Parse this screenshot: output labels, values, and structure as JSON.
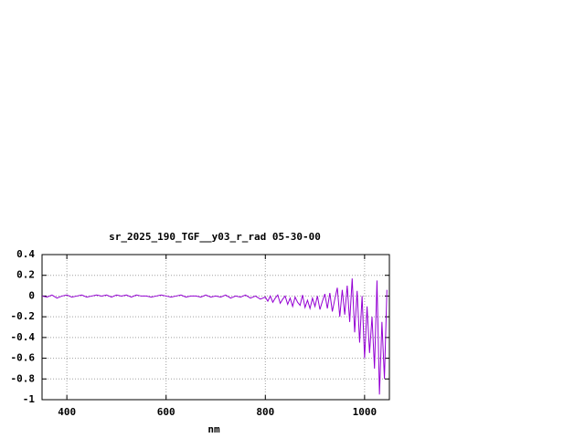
{
  "chart_data": {
    "type": "line",
    "title": "sr_2025_190_TGF__y03_r_rad 05-30-00",
    "x_label": "nm",
    "x": [
      350,
      360,
      370,
      380,
      390,
      400,
      410,
      420,
      430,
      440,
      450,
      460,
      470,
      480,
      490,
      500,
      510,
      520,
      530,
      540,
      550,
      560,
      570,
      580,
      590,
      600,
      610,
      620,
      630,
      640,
      650,
      660,
      670,
      680,
      690,
      700,
      710,
      720,
      730,
      740,
      750,
      760,
      770,
      780,
      790,
      800,
      805,
      810,
      815,
      820,
      825,
      830,
      835,
      840,
      845,
      850,
      855,
      860,
      865,
      870,
      875,
      880,
      885,
      890,
      895,
      900,
      905,
      910,
      915,
      920,
      925,
      930,
      935,
      940,
      945,
      950,
      955,
      960,
      965,
      970,
      975,
      980,
      985,
      990,
      995,
      1000,
      1005,
      1010,
      1015,
      1020,
      1025,
      1030,
      1035,
      1040,
      1045
    ],
    "series": [
      {
        "color": "#9400d3",
        "values": [
          0.0,
          -0.01,
          0.01,
          -0.02,
          0.0,
          0.01,
          -0.01,
          0.0,
          0.01,
          -0.01,
          0.0,
          0.01,
          0.0,
          0.01,
          -0.01,
          0.01,
          0.0,
          0.01,
          -0.01,
          0.01,
          0.0,
          0.0,
          -0.01,
          0.0,
          0.01,
          0.0,
          -0.01,
          0.0,
          0.01,
          -0.01,
          0.0,
          0.0,
          -0.01,
          0.01,
          -0.01,
          0.0,
          -0.01,
          0.01,
          -0.02,
          0.0,
          -0.01,
          0.01,
          -0.02,
          0.0,
          -0.03,
          -0.01,
          -0.05,
          0.0,
          -0.06,
          -0.02,
          0.01,
          -0.07,
          -0.03,
          0.0,
          -0.08,
          -0.02,
          -0.1,
          -0.01,
          -0.06,
          -0.09,
          0.01,
          -0.11,
          -0.04,
          -0.12,
          -0.02,
          -0.1,
          0.0,
          -0.13,
          -0.05,
          0.02,
          -0.12,
          0.03,
          -0.15,
          -0.03,
          0.08,
          -0.2,
          0.06,
          -0.18,
          0.1,
          -0.25,
          0.17,
          -0.35,
          0.05,
          -0.45,
          0.0,
          -0.6,
          -0.1,
          -0.55,
          -0.2,
          -0.7,
          0.15,
          -0.95,
          -0.25,
          -0.8,
          0.06
        ]
      }
    ],
    "xlim": [
      350,
      1050
    ],
    "xticks": [
      400,
      600,
      800,
      1000
    ],
    "ylim": [
      -1,
      0.4
    ],
    "yticks": [
      0.4,
      0.2,
      0,
      -0.2,
      -0.4,
      -0.6,
      -0.8,
      -1
    ],
    "grid": true
  }
}
